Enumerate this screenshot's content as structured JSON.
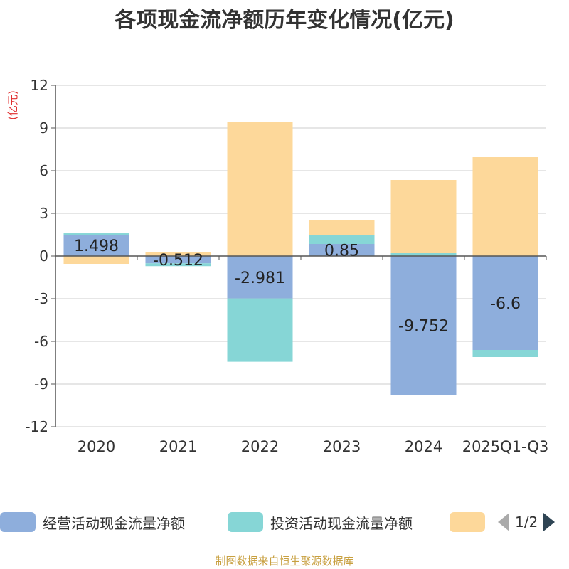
{
  "chart_data": {
    "type": "bar",
    "stacked": true,
    "title": "各项现金流净额历年变化情况(亿元)",
    "ylabel": "(亿元)",
    "ylim": [
      -12,
      12
    ],
    "yticks": [
      12,
      9,
      6,
      3,
      0,
      -3,
      -6,
      -9,
      -12
    ],
    "categories": [
      "2020",
      "2021",
      "2022",
      "2023",
      "2024",
      "2025Q1-Q3"
    ],
    "series": [
      {
        "name": "经营活动现金流量净额",
        "color": "#8eaedc",
        "values": [
          1.498,
          -0.512,
          -2.981,
          0.85,
          -9.752,
          -6.6
        ],
        "labels": [
          "1.498",
          "-0.512",
          "-2.981",
          "0.85",
          "-9.752",
          "-6.6"
        ]
      },
      {
        "name": "投资活动现金流量净额",
        "color": "#86d6d6",
        "values": [
          0.1,
          -0.2,
          -4.45,
          0.6,
          0.2,
          -0.5
        ]
      },
      {
        "name": "",
        "color": "#fdd89a",
        "values": [
          -0.55,
          0.25,
          9.4,
          1.1,
          5.15,
          6.95
        ]
      }
    ],
    "legend_position": "bottom",
    "legend_page": "1/2",
    "source": "制图数据来自恒生聚源数据库"
  }
}
